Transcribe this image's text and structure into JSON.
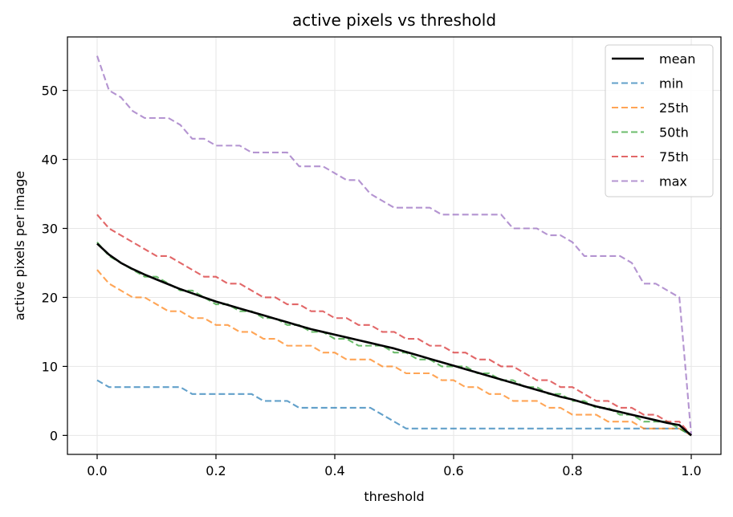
{
  "chart_data": {
    "type": "line",
    "title": "active pixels vs threshold",
    "xlabel": "threshold",
    "ylabel": "active pixels per image",
    "xlim": [
      -0.05,
      1.05
    ],
    "ylim": [
      -2.75,
      57.75
    ],
    "xticks": [
      0.0,
      0.2,
      0.4,
      0.6,
      0.8,
      1.0
    ],
    "xtick_labels": [
      "0.0",
      "0.2",
      "0.4",
      "0.6",
      "0.8",
      "1.0"
    ],
    "yticks": [
      0,
      10,
      20,
      30,
      40,
      50
    ],
    "ytick_labels": [
      "0",
      "10",
      "20",
      "30",
      "40",
      "50"
    ],
    "grid": true,
    "legend_position": "top-right",
    "x": [
      0.0,
      0.02,
      0.04,
      0.06,
      0.08,
      0.1,
      0.12,
      0.14,
      0.16,
      0.18,
      0.2,
      0.22,
      0.24,
      0.26,
      0.28,
      0.3,
      0.32,
      0.34,
      0.36,
      0.38,
      0.4,
      0.42,
      0.44,
      0.46,
      0.48,
      0.5,
      0.52,
      0.54,
      0.56,
      0.58,
      0.6,
      0.62,
      0.64,
      0.66,
      0.68,
      0.7,
      0.72,
      0.74,
      0.76,
      0.78,
      0.8,
      0.82,
      0.84,
      0.86,
      0.88,
      0.9,
      0.92,
      0.94,
      0.96,
      0.98,
      1.0
    ],
    "series": [
      {
        "name": "mean",
        "color": "#000000",
        "style": "solid",
        "values": [
          27.8,
          26.2,
          25.0,
          24.1,
          23.3,
          22.6,
          21.9,
          21.2,
          20.6,
          20.0,
          19.4,
          18.9,
          18.4,
          17.9,
          17.4,
          16.9,
          16.4,
          15.9,
          15.4,
          15.0,
          14.6,
          14.2,
          13.8,
          13.4,
          13.0,
          12.6,
          12.1,
          11.6,
          11.1,
          10.6,
          10.1,
          9.6,
          9.1,
          8.6,
          8.1,
          7.6,
          7.1,
          6.6,
          6.1,
          5.6,
          5.2,
          4.7,
          4.2,
          3.8,
          3.4,
          3.0,
          2.6,
          2.2,
          1.8,
          1.5,
          0.0
        ]
      },
      {
        "name": "min",
        "color": "#1f77b4",
        "style": "dashed",
        "values": [
          8,
          7,
          7,
          7,
          7,
          7,
          7,
          7,
          6,
          6,
          6,
          6,
          6,
          6,
          5,
          5,
          5,
          4,
          4,
          4,
          4,
          4,
          4,
          4,
          3,
          2,
          1,
          1,
          1,
          1,
          1,
          1,
          1,
          1,
          1,
          1,
          1,
          1,
          1,
          1,
          1,
          1,
          1,
          1,
          1,
          1,
          1,
          1,
          1,
          1,
          0
        ]
      },
      {
        "name": "25th",
        "color": "#ff7f0e",
        "style": "dashed",
        "values": [
          24,
          22,
          21,
          20,
          20,
          19,
          18,
          18,
          17,
          17,
          16,
          16,
          15,
          15,
          14,
          14,
          13,
          13,
          13,
          12,
          12,
          11,
          11,
          11,
          10,
          10,
          9,
          9,
          9,
          8,
          8,
          7,
          7,
          6,
          6,
          5,
          5,
          5,
          4,
          4,
          3,
          3,
          3,
          2,
          2,
          2,
          1,
          1,
          1,
          1,
          0
        ]
      },
      {
        "name": "50th",
        "color": "#2ca02c",
        "style": "dashed",
        "values": [
          28,
          26,
          25,
          24,
          23,
          23,
          22,
          21,
          21,
          20,
          19,
          19,
          18,
          18,
          17,
          17,
          16,
          16,
          15,
          15,
          14,
          14,
          13,
          13,
          13,
          12,
          12,
          11,
          11,
          10,
          10,
          10,
          9,
          9,
          8,
          8,
          7,
          7,
          6,
          6,
          5,
          5,
          4,
          4,
          3,
          3,
          2,
          2,
          2,
          1,
          0
        ]
      },
      {
        "name": "75th",
        "color": "#d62728",
        "style": "dashed",
        "values": [
          32,
          30,
          29,
          28,
          27,
          26,
          26,
          25,
          24,
          23,
          23,
          22,
          22,
          21,
          20,
          20,
          19,
          19,
          18,
          18,
          17,
          17,
          16,
          16,
          15,
          15,
          14,
          14,
          13,
          13,
          12,
          12,
          11,
          11,
          10,
          10,
          9,
          8,
          8,
          7,
          7,
          6,
          5,
          5,
          4,
          4,
          3,
          3,
          2,
          2,
          0
        ]
      },
      {
        "name": "max",
        "color": "#9467bd",
        "style": "dashed",
        "values": [
          55,
          50,
          49,
          47,
          46,
          46,
          46,
          45,
          43,
          43,
          42,
          42,
          42,
          41,
          41,
          41,
          41,
          39,
          39,
          39,
          38,
          37,
          37,
          35,
          34,
          33,
          33,
          33,
          33,
          32,
          32,
          32,
          32,
          32,
          32,
          30,
          30,
          30,
          29,
          29,
          28,
          26,
          26,
          26,
          26,
          25,
          22,
          22,
          21,
          20,
          0
        ]
      }
    ]
  }
}
